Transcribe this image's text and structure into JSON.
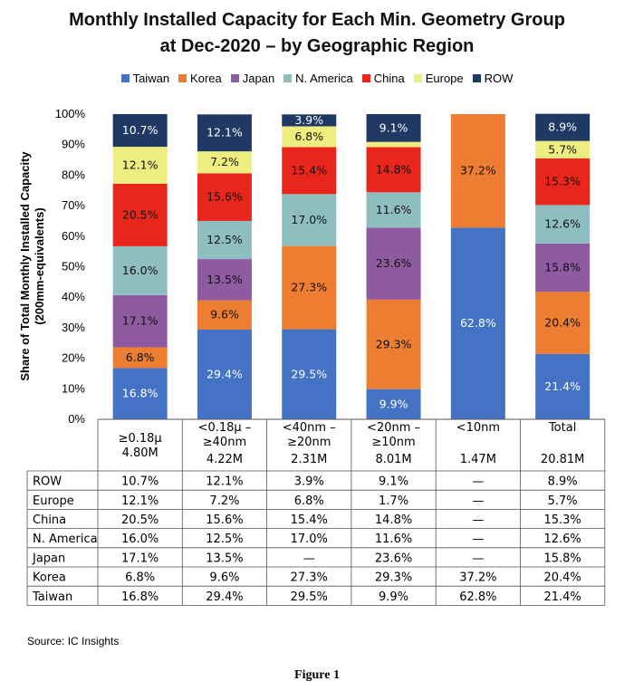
{
  "chart_data": {
    "type": "bar",
    "stacked": true,
    "title": [
      "Monthly Installed Capacity for Each Min. Geometry Group",
      "at Dec-2020 – by Geographic Region"
    ],
    "ylabel": [
      "Share of Total Monthly Installed Capacity",
      "(200mm-equivalents)"
    ],
    "ylim": [
      0,
      100
    ],
    "yticks": [
      "0%",
      "10%",
      "20%",
      "30%",
      "40%",
      "50%",
      "60%",
      "70%",
      "80%",
      "90%",
      "100%"
    ],
    "legend_position": "top",
    "categories": [
      {
        "lines": [
          "≥0.18μ",
          "4.80M"
        ]
      },
      {
        "lines": [
          "<0.18μ –",
          "≥40nm",
          "4.22M"
        ]
      },
      {
        "lines": [
          "<40nm –",
          "≥20nm",
          "2.31M"
        ]
      },
      {
        "lines": [
          "<20nm –",
          "≥10nm",
          "8.01M"
        ]
      },
      {
        "lines": [
          "<10nm",
          "",
          "1.47M"
        ]
      },
      {
        "lines": [
          "Total",
          "",
          "20.81M"
        ]
      }
    ],
    "series": [
      {
        "name": "Taiwan",
        "color": "#4472C4",
        "values": [
          16.8,
          29.4,
          29.5,
          9.9,
          62.8,
          21.4
        ],
        "labels": [
          "16.8%",
          "29.4%",
          "29.5%",
          "9.9%",
          "62.8%",
          "21.4%"
        ]
      },
      {
        "name": "Korea",
        "color": "#ED7D31",
        "values": [
          6.8,
          9.6,
          27.3,
          29.3,
          37.2,
          20.4
        ],
        "labels": [
          "6.8%",
          "9.6%",
          "27.3%",
          "29.3%",
          "37.2%",
          "20.4%"
        ]
      },
      {
        "name": "Japan",
        "color": "#8E5AA0",
        "values": [
          17.1,
          13.5,
          0,
          23.6,
          0,
          15.8
        ],
        "labels": [
          "17.1%",
          "13.5%",
          "",
          "23.6%",
          "",
          "15.8%"
        ]
      },
      {
        "name": "N. America",
        "color": "#8FBEC0",
        "values": [
          16.0,
          12.5,
          17.0,
          11.6,
          0,
          12.6
        ],
        "labels": [
          "16.0%",
          "12.5%",
          "17.0%",
          "11.6%",
          "",
          "12.6%"
        ]
      },
      {
        "name": "China",
        "color": "#E8261C",
        "values": [
          20.5,
          15.6,
          15.4,
          14.8,
          0,
          15.3
        ],
        "labels": [
          "20.5%",
          "15.6%",
          "15.4%",
          "14.8%",
          "",
          "15.3%"
        ]
      },
      {
        "name": "Europe",
        "color": "#EEEE80",
        "values": [
          12.1,
          7.2,
          6.8,
          1.7,
          0,
          5.7
        ],
        "labels": [
          "12.1%",
          "7.2%",
          "6.8%",
          "",
          "",
          "5.7%"
        ]
      },
      {
        "name": "ROW",
        "color": "#1F3864",
        "values": [
          10.7,
          12.1,
          3.9,
          9.1,
          0,
          8.9
        ],
        "labels": [
          "10.7%",
          "12.1%",
          "3.9%",
          "9.1%",
          "",
          "8.9%"
        ]
      }
    ],
    "table": {
      "rows": [
        {
          "name": "ROW",
          "cells": [
            "10.7%",
            "12.1%",
            "3.9%",
            "9.1%",
            "—",
            "8.9%"
          ]
        },
        {
          "name": "Europe",
          "cells": [
            "12.1%",
            "7.2%",
            "6.8%",
            "1.7%",
            "—",
            "5.7%"
          ]
        },
        {
          "name": "China",
          "cells": [
            "20.5%",
            "15.6%",
            "15.4%",
            "14.8%",
            "—",
            "15.3%"
          ]
        },
        {
          "name": "N. America",
          "cells": [
            "16.0%",
            "12.5%",
            "17.0%",
            "11.6%",
            "—",
            "12.6%"
          ]
        },
        {
          "name": "Japan",
          "cells": [
            "17.1%",
            "13.5%",
            "—",
            "23.6%",
            "—",
            "15.8%"
          ]
        },
        {
          "name": "Korea",
          "cells": [
            "6.8%",
            "9.6%",
            "27.3%",
            "29.3%",
            "37.2%",
            "20.4%"
          ]
        },
        {
          "name": "Taiwan",
          "cells": [
            "16.8%",
            "29.4%",
            "29.5%",
            "9.9%",
            "62.8%",
            "21.4%"
          ]
        }
      ]
    }
  },
  "source": "Source:  IC Insights",
  "figure_caption": "Figure 1",
  "colors": {
    "dark_label": "#111111",
    "light_label": "#ffffff",
    "grid": "#555555"
  }
}
